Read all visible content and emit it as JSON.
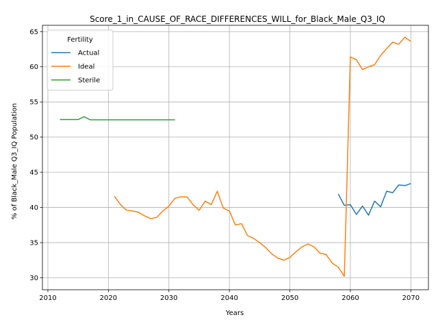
{
  "chart_data": {
    "type": "line",
    "title": "Score_1_in_CAUSE_OF_RACE_DIFFERENCES_WILL_for_Black_Male_Q3_IQ",
    "xlabel": "Years",
    "ylabel": "% of Black_Male Q3_IQ Population",
    "xlim": [
      2009.1,
      2072.9
    ],
    "ylim": [
      28.3,
      65.9
    ],
    "xticks": [
      2010,
      2020,
      2030,
      2040,
      2050,
      2060,
      2070
    ],
    "yticks": [
      30,
      35,
      40,
      45,
      50,
      55,
      60,
      65
    ],
    "grid": true,
    "legend": {
      "title": "Fertility",
      "placement": "top-left"
    },
    "series": [
      {
        "name": "Actual",
        "color": "#1f77b4",
        "x": [
          2058,
          2059,
          2060,
          2061,
          2062,
          2063,
          2064,
          2065,
          2066,
          2067,
          2068,
          2069,
          2070
        ],
        "y": [
          41.9,
          40.3,
          40.4,
          39.0,
          40.2,
          38.9,
          40.9,
          40.1,
          42.3,
          42.1,
          43.2,
          43.1,
          43.4
        ]
      },
      {
        "name": "Ideal",
        "color": "#ff7f0e",
        "x": [
          2021,
          2022,
          2023,
          2024,
          2025,
          2026,
          2027,
          2028,
          2029,
          2030,
          2031,
          2032,
          2033,
          2034,
          2035,
          2036,
          2037,
          2038,
          2039,
          2040,
          2041,
          2042,
          2043,
          2044,
          2045,
          2046,
          2047,
          2048,
          2049,
          2050,
          2051,
          2052,
          2053,
          2054,
          2055,
          2056,
          2057,
          2058,
          2059,
          2060,
          2061,
          2062,
          2063,
          2064,
          2065,
          2066,
          2067,
          2068,
          2069,
          2070
        ],
        "y": [
          41.6,
          40.4,
          39.6,
          39.5,
          39.3,
          38.8,
          38.4,
          38.6,
          39.5,
          40.2,
          41.3,
          41.5,
          41.5,
          40.4,
          39.6,
          40.9,
          40.4,
          42.3,
          39.9,
          39.5,
          37.5,
          37.7,
          36.0,
          35.6,
          35.0,
          34.3,
          33.4,
          32.8,
          32.5,
          32.9,
          33.7,
          34.4,
          34.8,
          34.4,
          33.5,
          33.3,
          32.1,
          31.5,
          30.2,
          61.4,
          61.0,
          59.6,
          60.0,
          60.3,
          61.6,
          62.6,
          63.5,
          63.2,
          64.2,
          63.6
        ]
      },
      {
        "name": "Sterile",
        "color": "#2ca02c",
        "x": [
          2012,
          2013,
          2014,
          2015,
          2016,
          2017,
          2018,
          2019,
          2020,
          2021,
          2022,
          2023,
          2024,
          2025,
          2026,
          2027,
          2028,
          2029,
          2030,
          2031
        ],
        "y": [
          52.5,
          52.5,
          52.5,
          52.5,
          52.9,
          52.45,
          52.45,
          52.45,
          52.45,
          52.45,
          52.45,
          52.45,
          52.45,
          52.45,
          52.45,
          52.45,
          52.45,
          52.45,
          52.45,
          52.45
        ]
      }
    ]
  }
}
